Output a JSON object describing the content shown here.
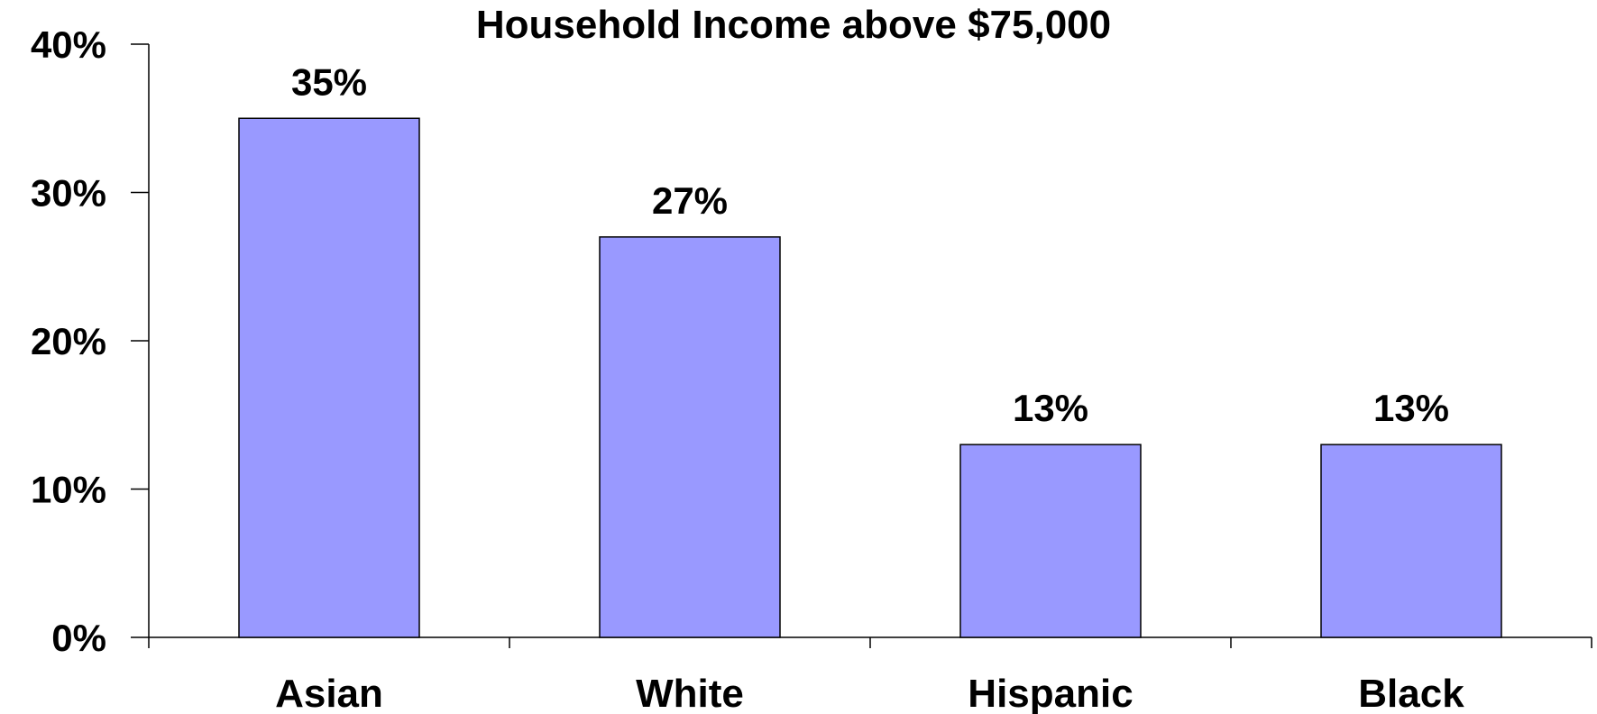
{
  "chart_data": {
    "type": "bar",
    "title": "Household Income above $75,000",
    "xlabel": "",
    "ylabel": "",
    "categories": [
      "Asian",
      "White",
      "Hispanic",
      "Black"
    ],
    "values": [
      35,
      27,
      13,
      13
    ],
    "value_unit": "%",
    "data_labels": [
      "35%",
      "27%",
      "13%",
      "13%"
    ],
    "ylim": [
      0,
      40
    ],
    "y_ticks": [
      0,
      10,
      20,
      30,
      40
    ],
    "y_tick_labels": [
      "0%",
      "10%",
      "20%",
      "30%",
      "40%"
    ],
    "grid": false,
    "legend": "none",
    "bar_color": "#9999ff",
    "bar_edge_color": "#000000"
  }
}
